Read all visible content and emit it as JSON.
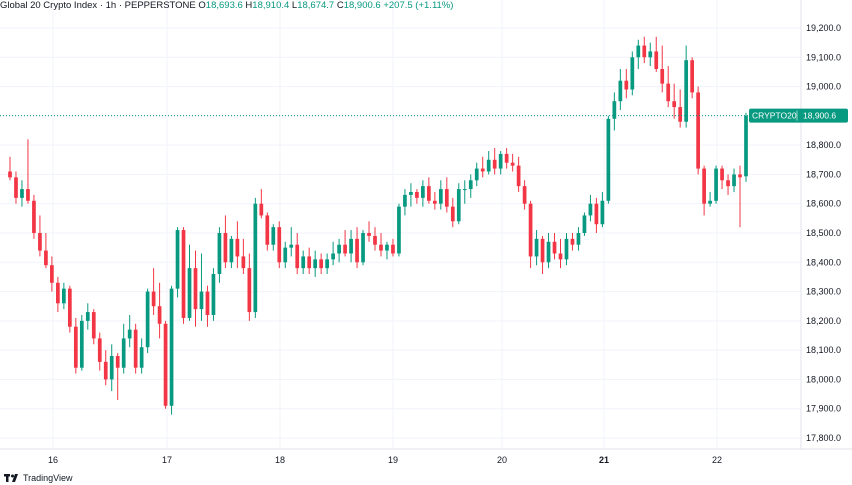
{
  "header": {
    "symbol_name": "Global 20 Crypto Index",
    "interval": "1h",
    "exchange": "PEPPERSTONE",
    "open_label": "O",
    "open_value": "18,693.6",
    "high_label": "H",
    "high_value": "18,910.4",
    "low_label": "L",
    "low_value": "18,674.7",
    "close_label": "C",
    "close_value": "18,900.6",
    "change_value": "+207.5 (+1.11%)"
  },
  "price_tag": {
    "symbol": "CRYPTO20",
    "price": "18,900.6"
  },
  "footer": {
    "brand": "TradingView"
  },
  "colors": {
    "up": "#089981",
    "down": "#f23645",
    "grid": "#f0f3fa",
    "text": "#131722",
    "price_line": "#089981"
  },
  "chart_data": {
    "type": "candlestick",
    "y_axis_labels": [
      "19,200.0",
      "19,100.0",
      "19,000.0",
      "18,900.0",
      "18,800.0",
      "18,700.0",
      "18,600.0",
      "18,500.0",
      "18,400.0",
      "18,300.0",
      "18,200.0",
      "18,100.0",
      "18,000.0",
      "17,900.0",
      "17,800.0"
    ],
    "ylim": [
      17780,
      19250
    ],
    "x_axis_labels": [
      "16",
      "17",
      "18",
      "19",
      "20",
      "21",
      "22"
    ],
    "x_label_bold": [
      false,
      false,
      false,
      false,
      false,
      true,
      false
    ],
    "last_price": 18900.6,
    "candles": [
      [
        18710,
        18760,
        18680,
        18690
      ],
      [
        18690,
        18710,
        18600,
        18620
      ],
      [
        18620,
        18680,
        18590,
        18650
      ],
      [
        18650,
        18820,
        18600,
        18610
      ],
      [
        18610,
        18630,
        18480,
        18500
      ],
      [
        18500,
        18560,
        18420,
        18440
      ],
      [
        18440,
        18500,
        18380,
        18390
      ],
      [
        18390,
        18420,
        18300,
        18330
      ],
      [
        18330,
        18350,
        18230,
        18260
      ],
      [
        18260,
        18330,
        18240,
        18310
      ],
      [
        18310,
        18320,
        18160,
        18180
      ],
      [
        18180,
        18210,
        18020,
        18040
      ],
      [
        18040,
        18220,
        18030,
        18200
      ],
      [
        18200,
        18260,
        18170,
        18230
      ],
      [
        18230,
        18240,
        18120,
        18140
      ],
      [
        18140,
        18160,
        18030,
        18060
      ],
      [
        18060,
        18100,
        17980,
        18000
      ],
      [
        18000,
        18120,
        17960,
        18080
      ],
      [
        18080,
        18090,
        17930,
        18040
      ],
      [
        18040,
        18190,
        18020,
        18140
      ],
      [
        18140,
        18220,
        18110,
        18170
      ],
      [
        18170,
        18190,
        18020,
        18040
      ],
      [
        18040,
        18140,
        18020,
        18110
      ],
      [
        18110,
        18310,
        18090,
        18300
      ],
      [
        18300,
        18380,
        18220,
        18250
      ],
      [
        18250,
        18330,
        18140,
        18190
      ],
      [
        18190,
        18200,
        17900,
        17910
      ],
      [
        17910,
        18320,
        17880,
        18310
      ],
      [
        18310,
        18520,
        18280,
        18510
      ],
      [
        18510,
        18520,
        18190,
        18210
      ],
      [
        18210,
        18460,
        18200,
        18380
      ],
      [
        18380,
        18440,
        18180,
        18240
      ],
      [
        18240,
        18430,
        18200,
        18300
      ],
      [
        18300,
        18320,
        18180,
        18220
      ],
      [
        18220,
        18380,
        18200,
        18360
      ],
      [
        18360,
        18520,
        18330,
        18500
      ],
      [
        18500,
        18560,
        18380,
        18400
      ],
      [
        18400,
        18490,
        18380,
        18480
      ],
      [
        18480,
        18540,
        18380,
        18420
      ],
      [
        18420,
        18480,
        18360,
        18380
      ],
      [
        18380,
        18430,
        18200,
        18230
      ],
      [
        18230,
        18620,
        18210,
        18600
      ],
      [
        18600,
        18650,
        18550,
        18560
      ],
      [
        18560,
        18570,
        18440,
        18460
      ],
      [
        18460,
        18530,
        18440,
        18520
      ],
      [
        18520,
        18540,
        18380,
        18400
      ],
      [
        18400,
        18470,
        18380,
        18450
      ],
      [
        18450,
        18520,
        18420,
        18460
      ],
      [
        18460,
        18500,
        18360,
        18380
      ],
      [
        18380,
        18440,
        18360,
        18420
      ],
      [
        18420,
        18450,
        18360,
        18380
      ],
      [
        18380,
        18440,
        18350,
        18410
      ],
      [
        18410,
        18430,
        18360,
        18380
      ],
      [
        18380,
        18430,
        18360,
        18410
      ],
      [
        18410,
        18470,
        18390,
        18430
      ],
      [
        18430,
        18480,
        18400,
        18460
      ],
      [
        18460,
        18510,
        18420,
        18430
      ],
      [
        18430,
        18510,
        18400,
        18480
      ],
      [
        18480,
        18520,
        18380,
        18400
      ],
      [
        18400,
        18510,
        18390,
        18500
      ],
      [
        18500,
        18540,
        18470,
        18490
      ],
      [
        18490,
        18520,
        18440,
        18460
      ],
      [
        18460,
        18500,
        18420,
        18440
      ],
      [
        18440,
        18470,
        18410,
        18460
      ],
      [
        18460,
        18480,
        18420,
        18430
      ],
      [
        18430,
        18600,
        18420,
        18590
      ],
      [
        18590,
        18650,
        18560,
        18630
      ],
      [
        18630,
        18670,
        18590,
        18640
      ],
      [
        18640,
        18650,
        18600,
        18620
      ],
      [
        18620,
        18680,
        18590,
        18660
      ],
      [
        18660,
        18690,
        18600,
        18610
      ],
      [
        18610,
        18640,
        18580,
        18600
      ],
      [
        18600,
        18680,
        18580,
        18650
      ],
      [
        18650,
        18690,
        18570,
        18590
      ],
      [
        18590,
        18620,
        18520,
        18540
      ],
      [
        18540,
        18670,
        18530,
        18650
      ],
      [
        18650,
        18680,
        18600,
        18650
      ],
      [
        18650,
        18700,
        18620,
        18680
      ],
      [
        18680,
        18740,
        18660,
        18720
      ],
      [
        18720,
        18760,
        18690,
        18710
      ],
      [
        18710,
        18780,
        18700,
        18750
      ],
      [
        18750,
        18790,
        18700,
        18720
      ],
      [
        18720,
        18780,
        18700,
        18770
      ],
      [
        18770,
        18790,
        18720,
        18740
      ],
      [
        18740,
        18770,
        18710,
        18730
      ],
      [
        18730,
        18760,
        18640,
        18660
      ],
      [
        18660,
        18680,
        18580,
        18600
      ],
      [
        18600,
        18610,
        18380,
        18420
      ],
      [
        18420,
        18510,
        18390,
        18480
      ],
      [
        18480,
        18490,
        18360,
        18400
      ],
      [
        18400,
        18500,
        18380,
        18470
      ],
      [
        18470,
        18500,
        18410,
        18430
      ],
      [
        18430,
        18480,
        18380,
        18410
      ],
      [
        18410,
        18500,
        18390,
        18480
      ],
      [
        18480,
        18500,
        18440,
        18460
      ],
      [
        18460,
        18520,
        18440,
        18500
      ],
      [
        18500,
        18570,
        18490,
        18560
      ],
      [
        18560,
        18630,
        18540,
        18600
      ],
      [
        18600,
        18620,
        18500,
        18530
      ],
      [
        18530,
        18640,
        18520,
        18610
      ],
      [
        18610,
        18900,
        18600,
        18890
      ],
      [
        18890,
        18980,
        18850,
        18950
      ],
      [
        18950,
        19060,
        18920,
        19020
      ],
      [
        19020,
        19060,
        18960,
        18990
      ],
      [
        18990,
        19120,
        18970,
        19100
      ],
      [
        19100,
        19160,
        19060,
        19140
      ],
      [
        19140,
        19170,
        19080,
        19100
      ],
      [
        19100,
        19150,
        19070,
        19120
      ],
      [
        19120,
        19170,
        19050,
        19060
      ],
      [
        19060,
        19140,
        18980,
        19010
      ],
      [
        19010,
        19070,
        18930,
        18950
      ],
      [
        18950,
        19010,
        18890,
        18930
      ],
      [
        18930,
        18990,
        18860,
        18880
      ],
      [
        18880,
        19140,
        18860,
        19090
      ],
      [
        19090,
        19100,
        18960,
        18980
      ],
      [
        18980,
        19000,
        18700,
        18720
      ],
      [
        18720,
        18730,
        18560,
        18600
      ],
      [
        18600,
        18640,
        18590,
        18610
      ],
      [
        18610,
        18730,
        18600,
        18720
      ],
      [
        18720,
        18730,
        18650,
        18680
      ],
      [
        18680,
        18700,
        18630,
        18660
      ],
      [
        18660,
        18720,
        18640,
        18700
      ],
      [
        18700,
        18730,
        18520,
        18690
      ],
      [
        18693.6,
        18910.4,
        18674.7,
        18900.6
      ]
    ]
  }
}
